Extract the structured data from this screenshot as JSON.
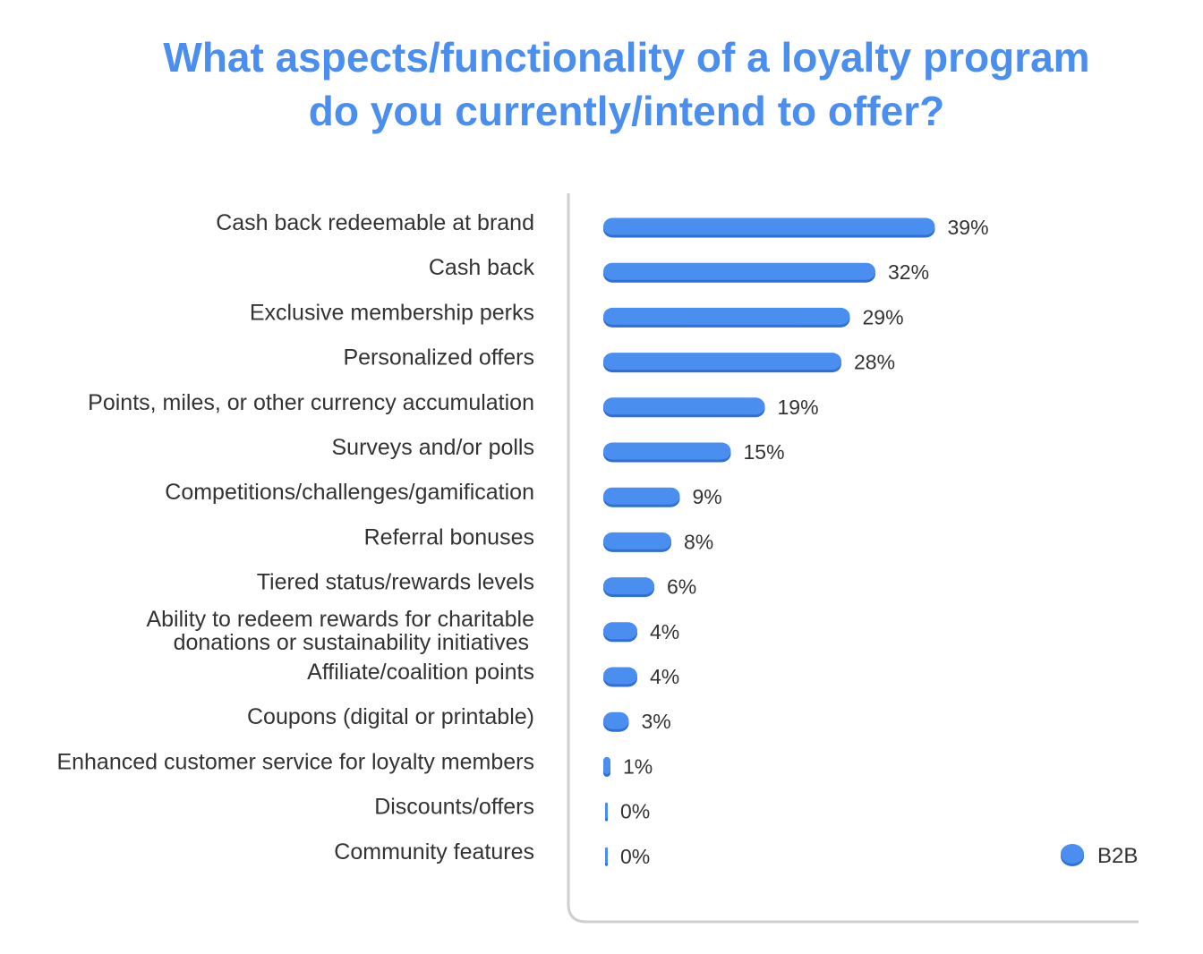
{
  "chart_data": {
    "type": "bar",
    "orientation": "horizontal",
    "title": "What aspects/functionality of a loyalty program do you currently/intend to offer?",
    "title_lines": [
      "What aspects/functionality of a loyalty program",
      "do you currently/intend to offer?"
    ],
    "categories": [
      [
        "Cash back redeemable at brand"
      ],
      [
        "Cash back"
      ],
      [
        "Exclusive membership perks"
      ],
      [
        "Personalized offers"
      ],
      [
        "Points, miles, or other currency accumulation"
      ],
      [
        "Surveys and/or polls"
      ],
      [
        "Competitions/challenges/gamification"
      ],
      [
        "Referral bonuses"
      ],
      [
        "Tiered status/rewards levels"
      ],
      [
        "Ability to redeem rewards for charitable",
        "donations or sustainability initiatives"
      ],
      [
        "Affiliate/coalition points"
      ],
      [
        "Coupons (digital or printable)"
      ],
      [
        "Enhanced customer service for loyalty members"
      ],
      [
        "Discounts/offers"
      ],
      [
        "Community features"
      ]
    ],
    "series": [
      {
        "name": "B2B",
        "values": [
          39,
          32,
          29,
          28,
          19,
          15,
          9,
          8,
          6,
          4,
          4,
          3,
          1,
          0,
          0
        ],
        "labels": [
          "39%",
          "32%",
          "29%",
          "28%",
          "19%",
          "15%",
          "9%",
          "8%",
          "6%",
          "4%",
          "4%",
          "3%",
          "1%",
          "0%",
          "0%"
        ]
      }
    ],
    "unit": "%",
    "xlim": [
      0,
      42
    ],
    "grid": false,
    "legend": "bottom-right",
    "colors": {
      "bar": "#4a8ef0",
      "bar_shadow": "#2f6fd6",
      "title": "#4a8ef0",
      "axis": "#cfcfcf",
      "text": "#333333"
    }
  }
}
